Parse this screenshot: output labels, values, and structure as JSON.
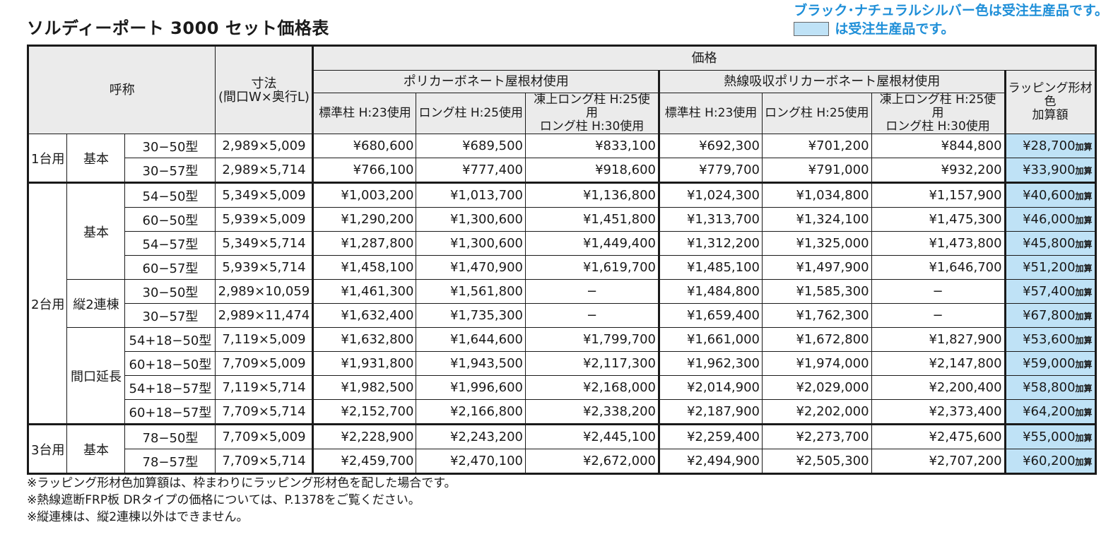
{
  "title": "ソルディーポート 3000 セット価格表",
  "notice": {
    "line1": "ブラック･ナチュラルシルバー色は受注生産品です。",
    "line2": "は受注生産品です。",
    "swatch_color": "#bfe2f6"
  },
  "table": {
    "header": {
      "name": "呼称",
      "dims": "寸法\n(間口W×奥行L)",
      "price": "価格",
      "group_polycarbonate": "ポリカーボネート屋根材使用",
      "group_heat": "熱線吸収ポリカーボネート屋根材使用",
      "wrapping": "ラッピング形材色\n加算額",
      "col_standard": "標準柱 H:23使用",
      "col_long": "ロング柱 H:25使用",
      "col_snow": "凍上ロング柱 H:25使用\nロング柱 H:30使用"
    },
    "wrap_suffix": "加算",
    "groups": {
      "g1": "1台用",
      "g2": "2台用",
      "g3": "3台用",
      "sub_basic": "基本",
      "sub_tandem": "縦2連棟",
      "sub_extend": "間口延長"
    },
    "rows": [
      {
        "type": "30−50型",
        "size": "2,989×5,009",
        "p1": "¥680,600",
        "p2": "¥689,500",
        "p3": "¥833,100",
        "p4": "¥692,300",
        "p5": "¥701,200",
        "p6": "¥844,800",
        "wrap": "¥28,700"
      },
      {
        "type": "30−57型",
        "size": "2,989×5,714",
        "p1": "¥766,100",
        "p2": "¥777,400",
        "p3": "¥918,600",
        "p4": "¥779,700",
        "p5": "¥791,000",
        "p6": "¥932,200",
        "wrap": "¥33,900"
      },
      {
        "type": "54−50型",
        "size": "5,349×5,009",
        "p1": "¥1,003,200",
        "p2": "¥1,013,700",
        "p3": "¥1,136,800",
        "p4": "¥1,024,300",
        "p5": "¥1,034,800",
        "p6": "¥1,157,900",
        "wrap": "¥40,600"
      },
      {
        "type": "60−50型",
        "size": "5,939×5,009",
        "p1": "¥1,290,200",
        "p2": "¥1,300,600",
        "p3": "¥1,451,800",
        "p4": "¥1,313,700",
        "p5": "¥1,324,100",
        "p6": "¥1,475,300",
        "wrap": "¥46,000"
      },
      {
        "type": "54−57型",
        "size": "5,349×5,714",
        "p1": "¥1,287,800",
        "p2": "¥1,300,600",
        "p3": "¥1,449,400",
        "p4": "¥1,312,200",
        "p5": "¥1,325,000",
        "p6": "¥1,473,800",
        "wrap": "¥45,800"
      },
      {
        "type": "60−57型",
        "size": "5,939×5,714",
        "p1": "¥1,458,100",
        "p2": "¥1,470,900",
        "p3": "¥1,619,700",
        "p4": "¥1,485,100",
        "p5": "¥1,497,900",
        "p6": "¥1,646,700",
        "wrap": "¥51,200"
      },
      {
        "type": "30−50型",
        "size": "2,989×10,059",
        "p1": "¥1,461,300",
        "p2": "¥1,561,800",
        "p3": "−",
        "p4": "¥1,484,800",
        "p5": "¥1,585,300",
        "p6": "−",
        "wrap": "¥57,400"
      },
      {
        "type": "30−57型",
        "size": "2,989×11,474",
        "p1": "¥1,632,400",
        "p2": "¥1,735,300",
        "p3": "−",
        "p4": "¥1,659,400",
        "p5": "¥1,762,300",
        "p6": "−",
        "wrap": "¥67,800"
      },
      {
        "type": "54+18−50型",
        "size": "7,119×5,009",
        "p1": "¥1,632,800",
        "p2": "¥1,644,600",
        "p3": "¥1,799,700",
        "p4": "¥1,661,000",
        "p5": "¥1,672,800",
        "p6": "¥1,827,900",
        "wrap": "¥53,600"
      },
      {
        "type": "60+18−50型",
        "size": "7,709×5,009",
        "p1": "¥1,931,800",
        "p2": "¥1,943,500",
        "p3": "¥2,117,300",
        "p4": "¥1,962,300",
        "p5": "¥1,974,000",
        "p6": "¥2,147,800",
        "wrap": "¥59,000"
      },
      {
        "type": "54+18−57型",
        "size": "7,119×5,714",
        "p1": "¥1,982,500",
        "p2": "¥1,996,600",
        "p3": "¥2,168,000",
        "p4": "¥2,014,900",
        "p5": "¥2,029,000",
        "p6": "¥2,200,400",
        "wrap": "¥58,800"
      },
      {
        "type": "60+18−57型",
        "size": "7,709×5,714",
        "p1": "¥2,152,700",
        "p2": "¥2,166,800",
        "p3": "¥2,338,200",
        "p4": "¥2,187,900",
        "p5": "¥2,202,000",
        "p6": "¥2,373,400",
        "wrap": "¥64,200"
      },
      {
        "type": "78−50型",
        "size": "7,709×5,009",
        "p1": "¥2,228,900",
        "p2": "¥2,243,200",
        "p3": "¥2,445,100",
        "p4": "¥2,259,400",
        "p5": "¥2,273,700",
        "p6": "¥2,475,600",
        "wrap": "¥55,000"
      },
      {
        "type": "78−57型",
        "size": "7,709×5,714",
        "p1": "¥2,459,700",
        "p2": "¥2,470,100",
        "p3": "¥2,672,000",
        "p4": "¥2,494,900",
        "p5": "¥2,505,300",
        "p6": "¥2,707,200",
        "wrap": "¥60,200"
      }
    ]
  },
  "footnotes": [
    "※ラッピング形材色加算額は、枠まわりにラッピング形材色を配した場合です。",
    "※熱線遮断FRP板 DRタイプの価格については、P.1378をご覧ください。",
    "※縦連棟は、縦2連棟以外はできません。"
  ]
}
